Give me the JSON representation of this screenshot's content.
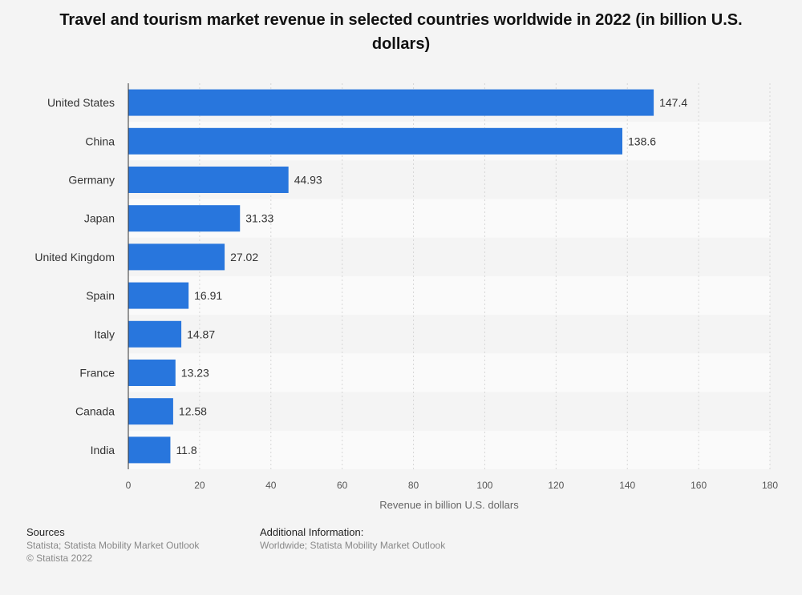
{
  "chart_data": {
    "type": "bar",
    "orientation": "horizontal",
    "title": "Travel and tourism market revenue in selected countries worldwide in 2022 (in billion U.S. dollars)",
    "categories": [
      "United States",
      "China",
      "Germany",
      "Japan",
      "United Kingdom",
      "Spain",
      "Italy",
      "France",
      "Canada",
      "India"
    ],
    "values": [
      147.4,
      138.6,
      44.93,
      31.33,
      27.02,
      16.91,
      14.87,
      13.23,
      12.58,
      11.8
    ],
    "value_labels": [
      "147.4",
      "138.6",
      "44.93",
      "31.33",
      "27.02",
      "16.91",
      "14.87",
      "13.23",
      "12.58",
      "11.8"
    ],
    "xlabel": "Revenue in billion U.S. dollars",
    "ylabel": "",
    "xlim": [
      0,
      180
    ],
    "xticks": [
      0,
      20,
      40,
      60,
      80,
      100,
      120,
      140,
      160,
      180
    ],
    "grid": true,
    "bar_color": "#2876dd"
  },
  "footer": {
    "sources_title": "Sources",
    "sources_line1": "Statista; Statista Mobility Market Outlook",
    "sources_line2": "© Statista 2022",
    "info_title": "Additional Information:",
    "info_line1": "Worldwide; Statista Mobility Market Outlook"
  }
}
